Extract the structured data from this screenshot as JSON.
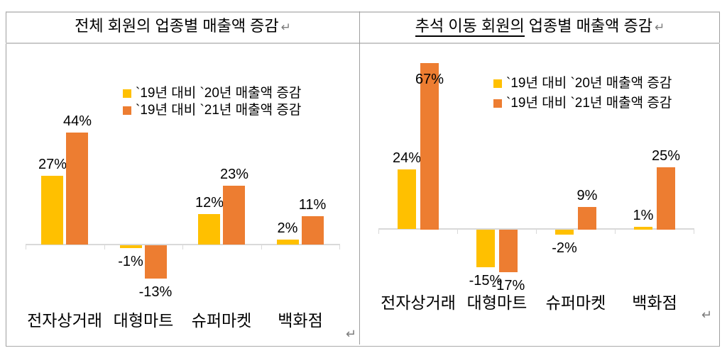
{
  "panels": [
    {
      "title_parts": [
        {
          "text": "전체 회원의 업종별 매출액 증감",
          "underline": false
        }
      ],
      "title_return_mark": "↵",
      "cell_return_mark": "↵"
    },
    {
      "title_parts": [
        {
          "text": "추석 이동 회원의",
          "underline": true
        },
        {
          "text": " 업종별 매출액 증감",
          "underline": false
        }
      ],
      "title_return_mark": "↵",
      "cell_return_mark": "↵"
    }
  ],
  "colors": {
    "series_2020": "#FFC000",
    "series_2021": "#ED7D31",
    "axis": "#D9D9D9",
    "table_border": "#9E9E9E"
  },
  "chart_data": [
    {
      "type": "bar",
      "title": "전체 회원의 업종별 매출액 증감",
      "categories": [
        "전자상거래",
        "대형마트",
        "슈퍼마켓",
        "백화점"
      ],
      "series": [
        {
          "name": "`19년 대비 `20년 매출액 증감",
          "color": "#FFC000",
          "values": [
            27,
            -1,
            12,
            2
          ],
          "labels": [
            "27%",
            "-1%",
            "12%",
            "2%"
          ]
        },
        {
          "name": "`19년 대비 `21년 매출액 증감",
          "color": "#ED7D31",
          "values": [
            44,
            -13,
            23,
            11
          ],
          "labels": [
            "44%",
            "-13%",
            "23%",
            "11%"
          ]
        }
      ],
      "ylim": [
        -20,
        50
      ],
      "grid": false,
      "legend_position": "top-right-inside",
      "value_unit": "%"
    },
    {
      "type": "bar",
      "title": "추석 이동 회원의 업종별 매출액 증감",
      "categories": [
        "전자상거래",
        "대형마트",
        "슈퍼마켓",
        "백화점"
      ],
      "series": [
        {
          "name": "`19년 대비 `20년 매출액 증감",
          "color": "#FFC000",
          "values": [
            24,
            -15,
            -2,
            1
          ],
          "labels": [
            "24%",
            "-15%",
            "-2%",
            "1%"
          ]
        },
        {
          "name": "`19년 대비 `21년 매출액 증감",
          "color": "#ED7D31",
          "values": [
            67,
            -17,
            9,
            25
          ],
          "labels": [
            "67%",
            "-17%",
            "9%",
            "25%"
          ]
        }
      ],
      "ylim": [
        -25,
        75
      ],
      "grid": false,
      "legend_position": "top-right-inside",
      "value_unit": "%"
    }
  ]
}
